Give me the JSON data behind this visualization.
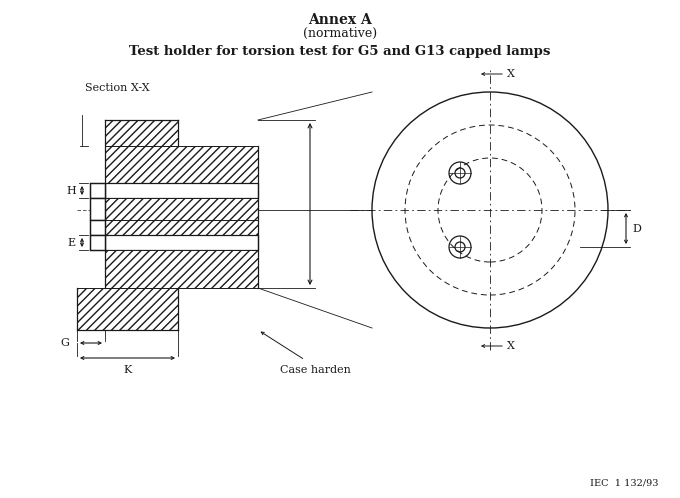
{
  "title1": "Annex A",
  "title2": "(normative)",
  "subtitle": "Test holder for torsion test for G5 and G13 capped lamps",
  "section_label": "Section X-X",
  "label_H": "H",
  "label_E": "E",
  "label_G": "G",
  "label_K": "K",
  "label_D": "D",
  "label_X1": "X",
  "label_X2": "X",
  "label_case_harden": "Case harden",
  "label_iec": "IEC  1 132/93",
  "bg_color": "#ffffff",
  "line_color": "#1a1a1a"
}
